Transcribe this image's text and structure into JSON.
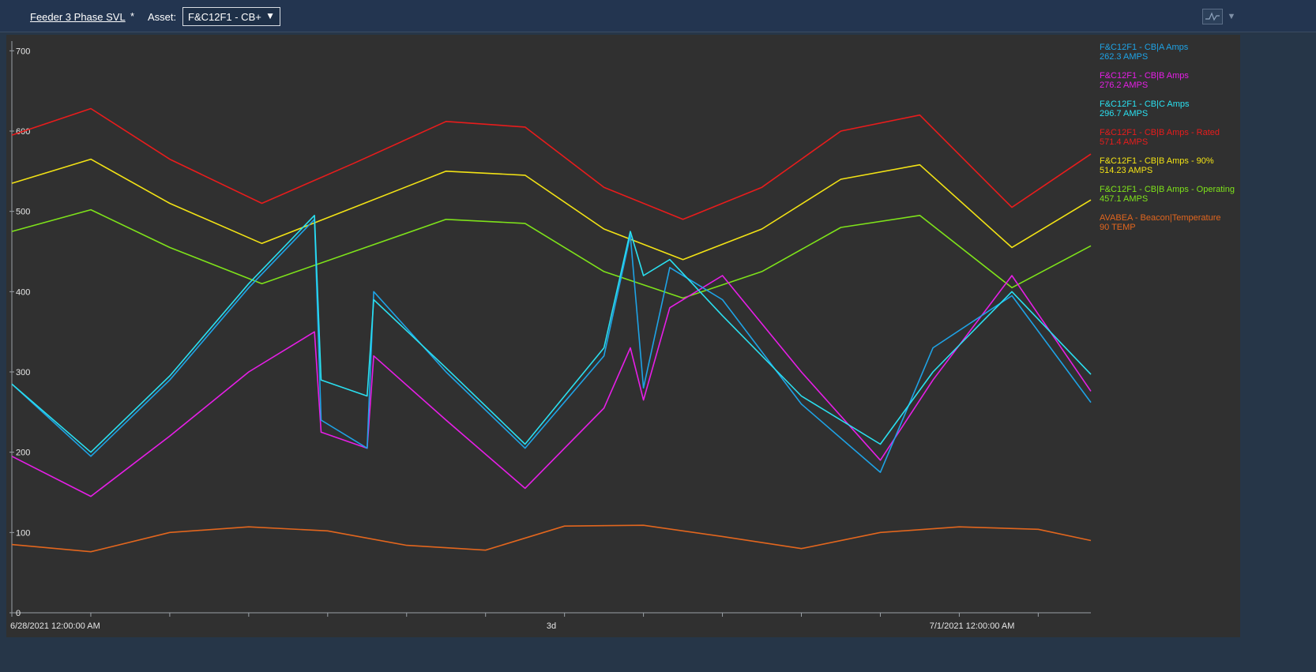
{
  "header": {
    "view_name": "Feeder 3 Phase SVL",
    "modified_mark": "*",
    "asset_label": "Asset:",
    "asset_value": "F&C12F1 - CB+",
    "asset_arrow": "▼",
    "menu_caret": "▼"
  },
  "chart_data": {
    "type": "line",
    "x_start": "6/28/2021 12:00:00 AM",
    "x_end": "7/1/2021 10:00:00 AM",
    "x_tick_labels": [
      {
        "x": "6/28/2021 12:00:00 AM",
        "label": "6/28/2021 12:00:00 AM"
      },
      {
        "x": "6/29/2021 5:00:00 PM",
        "label": "3d"
      },
      {
        "x": "7/1/2021 12:00:00 AM",
        "label": "7/1/2021 12:00:00 AM"
      }
    ],
    "y_ticks": [
      0,
      100,
      200,
      300,
      400,
      500,
      600,
      700
    ],
    "ylim": [
      0,
      720
    ],
    "series": [
      {
        "name": "F&C12F1 - CB|A Amps",
        "value_label": "262.3 AMPS",
        "color": "#1ea3e6",
        "x": [
          "6/28/2021 12:00:00 AM",
          "6/28/2021 6:00:00 AM",
          "6/28/2021 12:00:00 PM",
          "6/28/2021 6:00:00 PM",
          "6/28/2021 11:00:00 PM",
          "6/28/2021 11:30:00 PM",
          "6/29/2021 3:00:00 AM",
          "6/29/2021 3:30:00 AM",
          "6/29/2021 9:00:00 AM",
          "6/29/2021 3:00:00 PM",
          "6/29/2021 9:00:00 PM",
          "6/29/2021 11:00:00 PM",
          "6/30/2021 12:00:00 AM",
          "6/30/2021 2:00:00 AM",
          "6/30/2021 6:00:00 AM",
          "6/30/2021 12:00:00 PM",
          "6/30/2021 6:00:00 PM",
          "6/30/2021 10:00:00 PM",
          "7/1/2021 4:00:00 AM",
          "7/1/2021 10:00:00 AM"
        ],
        "values": [
          285,
          195,
          290,
          405,
          490,
          240,
          205,
          400,
          300,
          205,
          320,
          470,
          280,
          430,
          390,
          260,
          175,
          330,
          395,
          262
        ]
      },
      {
        "name": "F&C12F1 - CB|B Amps",
        "value_label": "276.2 AMPS",
        "color": "#e61ee6",
        "x": [
          "6/28/2021 12:00:00 AM",
          "6/28/2021 6:00:00 AM",
          "6/28/2021 12:00:00 PM",
          "6/28/2021 6:00:00 PM",
          "6/28/2021 11:00:00 PM",
          "6/28/2021 11:30:00 PM",
          "6/29/2021 3:00:00 AM",
          "6/29/2021 3:30:00 AM",
          "6/29/2021 9:00:00 AM",
          "6/29/2021 3:00:00 PM",
          "6/29/2021 9:00:00 PM",
          "6/29/2021 11:00:00 PM",
          "6/30/2021 12:00:00 AM",
          "6/30/2021 2:00:00 AM",
          "6/30/2021 6:00:00 AM",
          "6/30/2021 12:00:00 PM",
          "6/30/2021 6:00:00 PM",
          "6/30/2021 10:00:00 PM",
          "7/1/2021 4:00:00 AM",
          "7/1/2021 10:00:00 AM"
        ],
        "values": [
          195,
          145,
          220,
          300,
          350,
          225,
          205,
          320,
          240,
          155,
          255,
          330,
          265,
          380,
          420,
          300,
          190,
          290,
          420,
          276
        ]
      },
      {
        "name": "F&C12F1 - CB|C Amps",
        "value_label": "296.7 AMPS",
        "color": "#2ae0f0",
        "x": [
          "6/28/2021 12:00:00 AM",
          "6/28/2021 6:00:00 AM",
          "6/28/2021 12:00:00 PM",
          "6/28/2021 6:00:00 PM",
          "6/28/2021 11:00:00 PM",
          "6/28/2021 11:30:00 PM",
          "6/29/2021 3:00:00 AM",
          "6/29/2021 3:30:00 AM",
          "6/29/2021 9:00:00 AM",
          "6/29/2021 3:00:00 PM",
          "6/29/2021 9:00:00 PM",
          "6/29/2021 11:00:00 PM",
          "6/30/2021 12:00:00 AM",
          "6/30/2021 2:00:00 AM",
          "6/30/2021 6:00:00 AM",
          "6/30/2021 12:00:00 PM",
          "6/30/2021 6:00:00 PM",
          "6/30/2021 10:00:00 PM",
          "7/1/2021 4:00:00 AM",
          "7/1/2021 10:00:00 AM"
        ],
        "values": [
          285,
          200,
          295,
          410,
          495,
          290,
          270,
          390,
          305,
          210,
          330,
          475,
          420,
          440,
          370,
          270,
          210,
          300,
          400,
          297
        ]
      },
      {
        "name": "F&C12F1 - CB|B Amps - Rated",
        "value_label": "571.4 AMPS",
        "color": "#e81c1c",
        "x": [
          "6/28/2021 12:00:00 AM",
          "6/28/2021 6:00:00 AM",
          "6/28/2021 12:00:00 PM",
          "6/28/2021 7:00:00 PM",
          "6/29/2021 2:00:00 AM",
          "6/29/2021 9:00:00 AM",
          "6/29/2021 3:00:00 PM",
          "6/29/2021 9:00:00 PM",
          "6/30/2021 3:00:00 AM",
          "6/30/2021 9:00:00 AM",
          "6/30/2021 3:00:00 PM",
          "6/30/2021 9:00:00 PM",
          "7/1/2021 4:00:00 AM",
          "7/1/2021 10:00:00 AM"
        ],
        "values": [
          595,
          628,
          565,
          510,
          560,
          612,
          605,
          530,
          490,
          530,
          600,
          620,
          505,
          571.4
        ]
      },
      {
        "name": "F&C12F1 - CB|B Amps - 90%",
        "value_label": "514.23 AMPS",
        "color": "#f2e215",
        "x": [
          "6/28/2021 12:00:00 AM",
          "6/28/2021 6:00:00 AM",
          "6/28/2021 12:00:00 PM",
          "6/28/2021 7:00:00 PM",
          "6/29/2021 2:00:00 AM",
          "6/29/2021 9:00:00 AM",
          "6/29/2021 3:00:00 PM",
          "6/29/2021 9:00:00 PM",
          "6/30/2021 3:00:00 AM",
          "6/30/2021 9:00:00 AM",
          "6/30/2021 3:00:00 PM",
          "6/30/2021 9:00:00 PM",
          "7/1/2021 4:00:00 AM",
          "7/1/2021 10:00:00 AM"
        ],
        "values": [
          535,
          565,
          510,
          460,
          505,
          550,
          545,
          478,
          440,
          478,
          540,
          558,
          455,
          514.23
        ]
      },
      {
        "name": "F&C12F1 - CB|B Amps - Operating",
        "value_label": "457.1 AMPS",
        "color": "#7ee21a",
        "x": [
          "6/28/2021 12:00:00 AM",
          "6/28/2021 6:00:00 AM",
          "6/28/2021 12:00:00 PM",
          "6/28/2021 7:00:00 PM",
          "6/29/2021 2:00:00 AM",
          "6/29/2021 9:00:00 AM",
          "6/29/2021 3:00:00 PM",
          "6/29/2021 9:00:00 PM",
          "6/30/2021 3:00:00 AM",
          "6/30/2021 9:00:00 AM",
          "6/30/2021 3:00:00 PM",
          "6/30/2021 9:00:00 PM",
          "7/1/2021 4:00:00 AM",
          "7/1/2021 10:00:00 AM"
        ],
        "values": [
          475,
          502,
          455,
          410,
          450,
          490,
          485,
          425,
          392,
          425,
          480,
          495,
          405,
          457.1
        ]
      },
      {
        "name": "AVABEA - Beacon|Temperature",
        "value_label": "90 TEMP",
        "color": "#e2661e",
        "x": [
          "6/28/2021 12:00:00 AM",
          "6/28/2021 6:00:00 AM",
          "6/28/2021 12:00:00 PM",
          "6/28/2021 6:00:00 PM",
          "6/29/2021 12:00:00 AM",
          "6/29/2021 6:00:00 AM",
          "6/29/2021 12:00:00 PM",
          "6/29/2021 6:00:00 PM",
          "6/30/2021 12:00:00 AM",
          "6/30/2021 6:00:00 AM",
          "6/30/2021 12:00:00 PM",
          "6/30/2021 6:00:00 PM",
          "7/1/2021 12:00:00 AM",
          "7/1/2021 6:00:00 AM",
          "7/1/2021 10:00:00 AM"
        ],
        "values": [
          85,
          76,
          100,
          107,
          102,
          84,
          78,
          108,
          109,
          95,
          80,
          100,
          107,
          104,
          90
        ]
      }
    ]
  }
}
